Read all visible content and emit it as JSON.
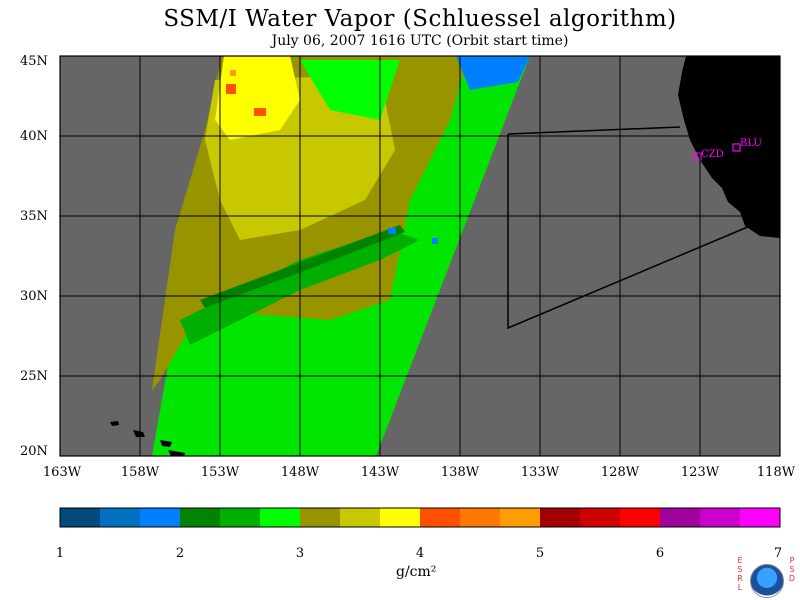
{
  "title": "SSM/I Water Vapor (Schluessel algorithm)",
  "subtitle": "July 06, 2007  1616 UTC  (Orbit start time)",
  "map": {
    "lon_range": [
      -163,
      -118
    ],
    "lat_range": [
      20,
      45
    ],
    "lon_ticks": [
      "163W",
      "158W",
      "153W",
      "148W",
      "143W",
      "138W",
      "133W",
      "128W",
      "123W",
      "118W"
    ],
    "lat_ticks": [
      "45N",
      "40N",
      "35N",
      "30N",
      "25N",
      "20N"
    ],
    "no_data_color": "#666666",
    "land_color": "#000000",
    "stations": [
      {
        "label": "CZD",
        "color": "#ff00ff"
      },
      {
        "label": "BLU",
        "color": "#ff00ff"
      }
    ]
  },
  "colorbar": {
    "tick_labels": [
      "1",
      "2",
      "3",
      "4",
      "5",
      "6",
      "7"
    ],
    "units": "g/cm²",
    "colors": [
      "#004b7b",
      "#0070c0",
      "#0080ff",
      "#008400",
      "#00b000",
      "#00ff00",
      "#989400",
      "#c8c800",
      "#ffff00",
      "#ff5000",
      "#ff7800",
      "#ff9c00",
      "#a00000",
      "#cc0000",
      "#ff0000",
      "#a0009c",
      "#cc00cc",
      "#ff00ff"
    ]
  },
  "logo": {
    "left": [
      "E",
      "S",
      "R",
      "L"
    ],
    "right": [
      "P",
      "S",
      "D"
    ],
    "center": "NOAA"
  }
}
